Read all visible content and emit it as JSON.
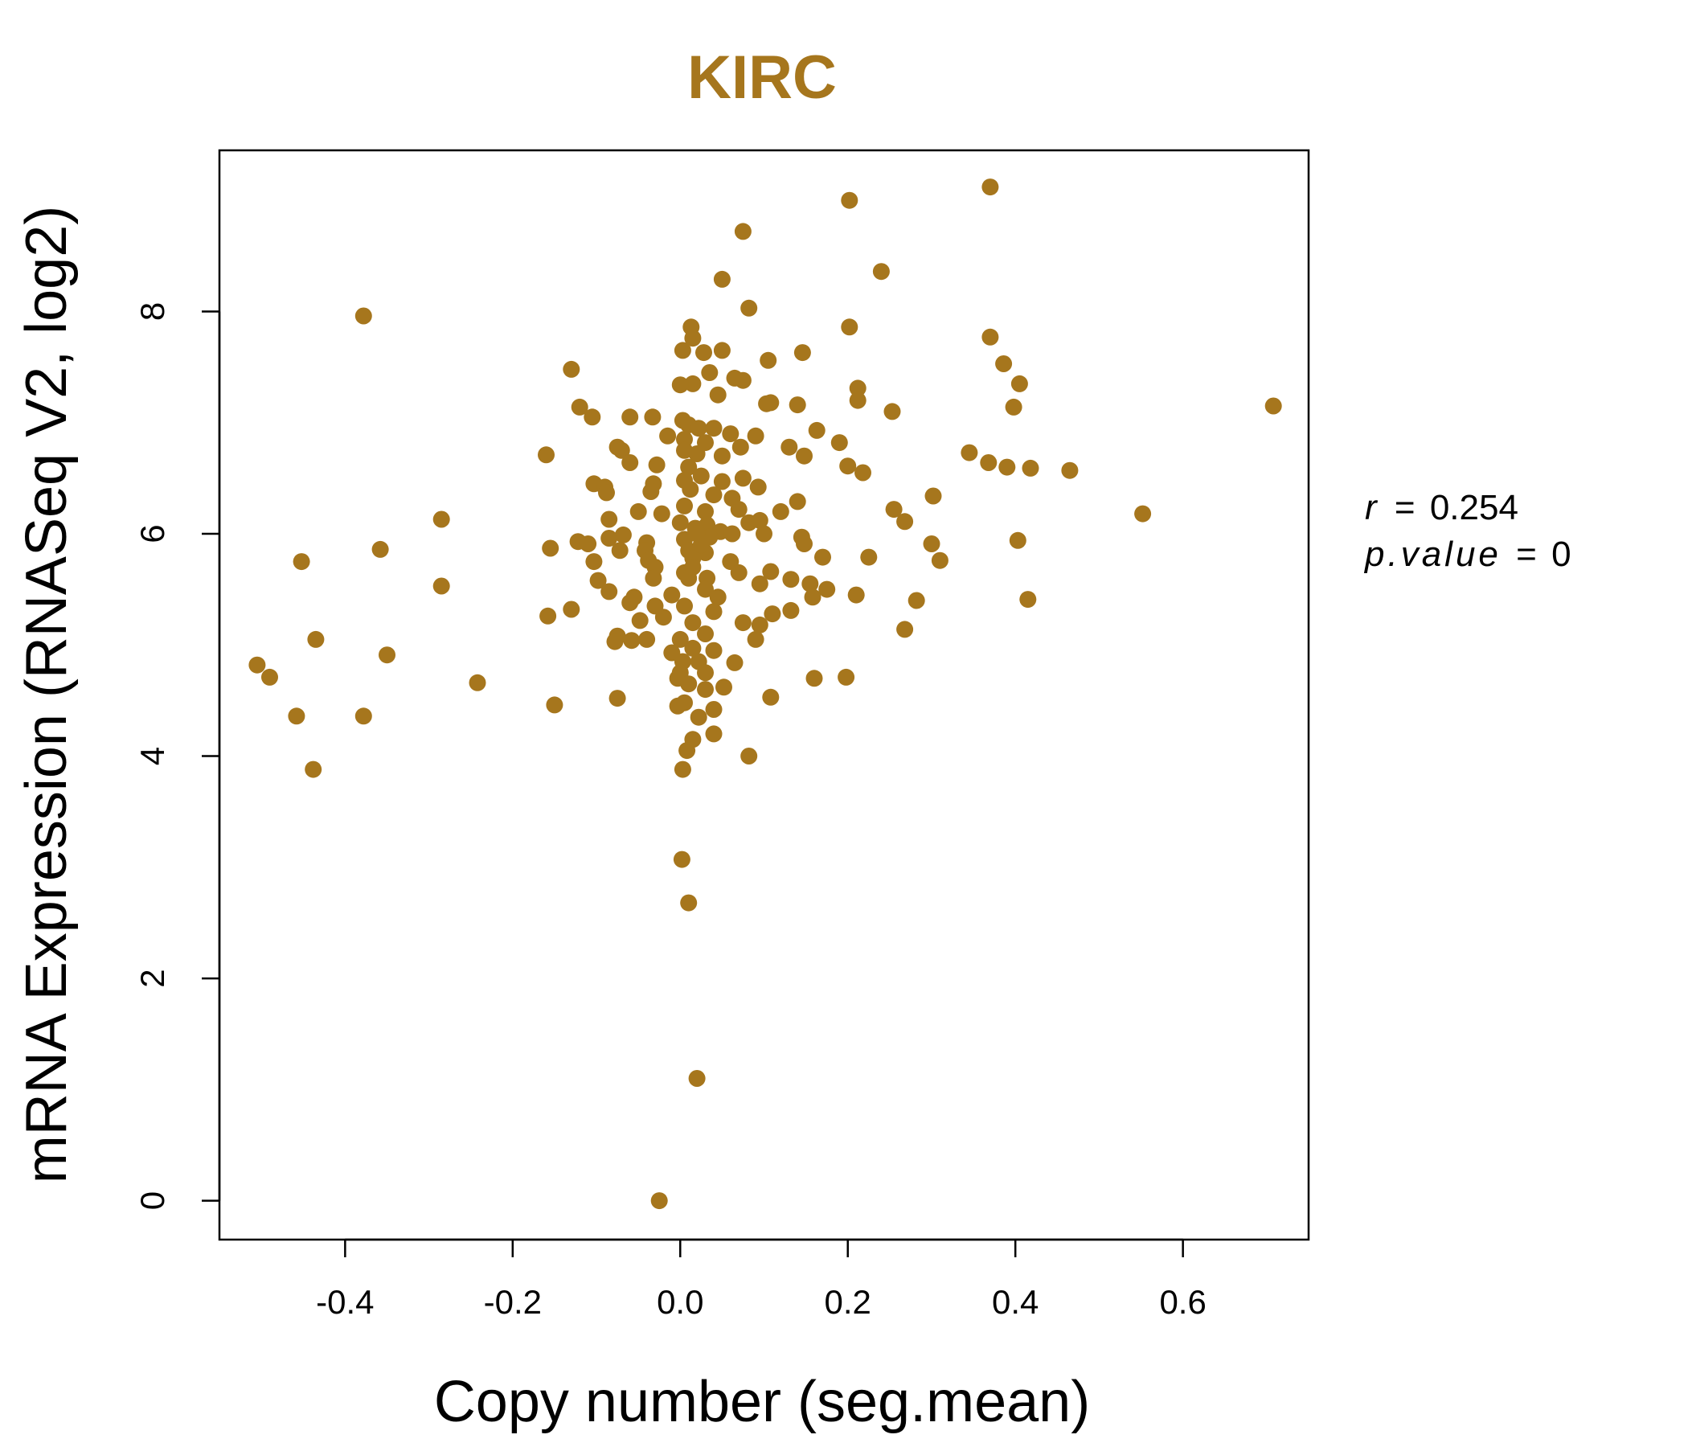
{
  "chart_data": {
    "type": "scatter",
    "title": "KIRC",
    "xlabel": "Copy number (seg.mean)",
    "ylabel": "mRNA Expression (RNASeq V2, log2)",
    "xlim": [
      -0.55,
      0.75
    ],
    "ylim": [
      -0.35,
      9.45
    ],
    "xticks": [
      -0.4,
      -0.2,
      0.0,
      0.2,
      0.4,
      0.6
    ],
    "xtick_labels": [
      "-0.4",
      "-0.2",
      "0.0",
      "0.2",
      "0.4",
      "0.6"
    ],
    "yticks": [
      0,
      2,
      4,
      6,
      8
    ],
    "ytick_labels": [
      "0",
      "2",
      "4",
      "6",
      "8"
    ],
    "grid": false,
    "point_color": "#a6761d",
    "stats": {
      "r_label": "r",
      "r_value": "0.254",
      "p_label": "p.value",
      "p_value": "0"
    },
    "series": [
      {
        "points": [
          [
            0.37,
            9.12
          ],
          [
            0.202,
            9.0
          ],
          [
            0.075,
            8.72
          ],
          [
            0.24,
            8.36
          ],
          [
            0.05,
            8.29
          ],
          [
            0.082,
            8.03
          ],
          [
            -0.378,
            7.96
          ],
          [
            0.013,
            7.86
          ],
          [
            0.202,
            7.86
          ],
          [
            0.37,
            7.77
          ],
          [
            0.015,
            7.76
          ],
          [
            0.003,
            7.65
          ],
          [
            0.028,
            7.63
          ],
          [
            0.05,
            7.65
          ],
          [
            0.146,
            7.63
          ],
          [
            0.105,
            7.56
          ],
          [
            0.386,
            7.53
          ],
          [
            -0.13,
            7.48
          ],
          [
            0.035,
            7.45
          ],
          [
            0.065,
            7.4
          ],
          [
            0.075,
            7.38
          ],
          [
            0.015,
            7.35
          ],
          [
            0.405,
            7.35
          ],
          [
            0.212,
            7.31
          ],
          [
            0.0,
            7.34
          ],
          [
            0.045,
            7.25
          ],
          [
            0.212,
            7.2
          ],
          [
            0.103,
            7.17
          ],
          [
            0.108,
            7.18
          ],
          [
            0.14,
            7.16
          ],
          [
            -0.12,
            7.14
          ],
          [
            0.398,
            7.14
          ],
          [
            0.708,
            7.15
          ],
          [
            0.253,
            7.1
          ],
          [
            -0.105,
            7.05
          ],
          [
            -0.06,
            7.05
          ],
          [
            -0.033,
            7.05
          ],
          [
            0.003,
            7.02
          ],
          [
            0.01,
            6.98
          ],
          [
            0.022,
            6.95
          ],
          [
            0.04,
            6.95
          ],
          [
            0.06,
            6.9
          ],
          [
            0.163,
            6.93
          ],
          [
            -0.015,
            6.88
          ],
          [
            0.005,
            6.85
          ],
          [
            0.03,
            6.82
          ],
          [
            0.09,
            6.88
          ],
          [
            0.19,
            6.82
          ],
          [
            -0.075,
            6.78
          ],
          [
            -0.07,
            6.75
          ],
          [
            0.005,
            6.75
          ],
          [
            0.02,
            6.72
          ],
          [
            0.05,
            6.7
          ],
          [
            0.072,
            6.78
          ],
          [
            0.13,
            6.78
          ],
          [
            0.148,
            6.7
          ],
          [
            0.345,
            6.73
          ],
          [
            -0.16,
            6.71
          ],
          [
            -0.06,
            6.64
          ],
          [
            -0.028,
            6.62
          ],
          [
            0.01,
            6.6
          ],
          [
            0.368,
            6.64
          ],
          [
            0.39,
            6.6
          ],
          [
            0.418,
            6.59
          ],
          [
            0.465,
            6.57
          ],
          [
            0.2,
            6.61
          ],
          [
            0.218,
            6.55
          ],
          [
            -0.103,
            6.45
          ],
          [
            -0.09,
            6.42
          ],
          [
            -0.032,
            6.45
          ],
          [
            0.005,
            6.48
          ],
          [
            0.025,
            6.52
          ],
          [
            0.05,
            6.47
          ],
          [
            0.075,
            6.5
          ],
          [
            0.093,
            6.42
          ],
          [
            -0.088,
            6.37
          ],
          [
            -0.035,
            6.38
          ],
          [
            0.012,
            6.4
          ],
          [
            0.04,
            6.35
          ],
          [
            0.062,
            6.32
          ],
          [
            0.14,
            6.29
          ],
          [
            0.302,
            6.34
          ],
          [
            -0.05,
            6.2
          ],
          [
            -0.022,
            6.18
          ],
          [
            0.005,
            6.25
          ],
          [
            0.03,
            6.2
          ],
          [
            0.07,
            6.22
          ],
          [
            0.12,
            6.2
          ],
          [
            0.255,
            6.22
          ],
          [
            0.552,
            6.18
          ],
          [
            -0.285,
            6.13
          ],
          [
            -0.085,
            6.13
          ],
          [
            0.0,
            6.1
          ],
          [
            0.032,
            6.08
          ],
          [
            0.082,
            6.1
          ],
          [
            0.095,
            6.12
          ],
          [
            0.268,
            6.11
          ],
          [
            0.018,
            6.05
          ],
          [
            0.048,
            6.02
          ],
          [
            0.062,
            6.0
          ],
          [
            0.1,
            6.0
          ],
          [
            -0.068,
            5.99
          ],
          [
            -0.122,
            5.93
          ],
          [
            -0.11,
            5.91
          ],
          [
            -0.085,
            5.96
          ],
          [
            -0.04,
            5.92
          ],
          [
            0.005,
            5.95
          ],
          [
            0.035,
            5.97
          ],
          [
            0.145,
            5.97
          ],
          [
            0.148,
            5.91
          ],
          [
            0.3,
            5.91
          ],
          [
            0.403,
            5.94
          ],
          [
            -0.155,
            5.87
          ],
          [
            -0.358,
            5.86
          ],
          [
            -0.072,
            5.85
          ],
          [
            -0.042,
            5.85
          ],
          [
            0.01,
            5.85
          ],
          [
            0.03,
            5.83
          ],
          [
            0.17,
            5.79
          ],
          [
            0.225,
            5.79
          ],
          [
            -0.452,
            5.75
          ],
          [
            -0.103,
            5.75
          ],
          [
            -0.038,
            5.76
          ],
          [
            0.015,
            5.78
          ],
          [
            0.06,
            5.75
          ],
          [
            0.31,
            5.76
          ],
          [
            -0.03,
            5.7
          ],
          [
            0.005,
            5.65
          ],
          [
            0.07,
            5.65
          ],
          [
            0.108,
            5.66
          ],
          [
            -0.098,
            5.58
          ],
          [
            -0.032,
            5.6
          ],
          [
            0.01,
            5.6
          ],
          [
            0.032,
            5.6
          ],
          [
            0.095,
            5.55
          ],
          [
            0.132,
            5.59
          ],
          [
            0.155,
            5.55
          ],
          [
            -0.285,
            5.53
          ],
          [
            -0.085,
            5.48
          ],
          [
            -0.055,
            5.43
          ],
          [
            -0.01,
            5.45
          ],
          [
            0.045,
            5.43
          ],
          [
            0.158,
            5.43
          ],
          [
            0.175,
            5.5
          ],
          [
            0.21,
            5.45
          ],
          [
            0.282,
            5.4
          ],
          [
            0.415,
            5.41
          ],
          [
            -0.06,
            5.38
          ],
          [
            -0.03,
            5.35
          ],
          [
            0.005,
            5.35
          ],
          [
            0.04,
            5.3
          ],
          [
            0.11,
            5.28
          ],
          [
            0.132,
            5.31
          ],
          [
            -0.13,
            5.32
          ],
          [
            -0.158,
            5.26
          ],
          [
            -0.048,
            5.22
          ],
          [
            -0.02,
            5.25
          ],
          [
            0.015,
            5.2
          ],
          [
            0.075,
            5.2
          ],
          [
            0.095,
            5.18
          ],
          [
            0.268,
            5.14
          ],
          [
            -0.075,
            5.08
          ],
          [
            -0.04,
            5.05
          ],
          [
            0.0,
            5.05
          ],
          [
            0.03,
            5.1
          ],
          [
            0.09,
            5.05
          ],
          [
            -0.435,
            5.05
          ],
          [
            -0.078,
            5.03
          ],
          [
            -0.058,
            5.04
          ],
          [
            -0.01,
            4.93
          ],
          [
            0.015,
            4.97
          ],
          [
            0.04,
            4.95
          ],
          [
            -0.35,
            4.91
          ],
          [
            0.003,
            4.85
          ],
          [
            0.022,
            4.85
          ],
          [
            0.065,
            4.84
          ],
          [
            -0.505,
            4.82
          ],
          [
            0.0,
            4.75
          ],
          [
            0.03,
            4.75
          ],
          [
            -0.49,
            4.71
          ],
          [
            -0.003,
            4.7
          ],
          [
            0.16,
            4.7
          ],
          [
            0.198,
            4.71
          ],
          [
            -0.242,
            4.66
          ],
          [
            0.01,
            4.65
          ],
          [
            0.052,
            4.62
          ],
          [
            0.03,
            4.6
          ],
          [
            0.108,
            4.53
          ],
          [
            -0.075,
            4.52
          ],
          [
            -0.15,
            4.46
          ],
          [
            -0.003,
            4.45
          ],
          [
            0.005,
            4.48
          ],
          [
            0.04,
            4.42
          ],
          [
            -0.458,
            4.36
          ],
          [
            -0.378,
            4.36
          ],
          [
            0.022,
            4.35
          ],
          [
            0.04,
            4.2
          ],
          [
            0.015,
            4.15
          ],
          [
            0.008,
            4.05
          ],
          [
            0.082,
            4.0
          ],
          [
            -0.438,
            3.88
          ],
          [
            0.003,
            3.88
          ],
          [
            0.002,
            3.07
          ],
          [
            0.01,
            2.68
          ],
          [
            0.02,
            1.1
          ],
          [
            -0.025,
            0.0
          ],
          [
            0.025,
            5.9
          ],
          [
            0.015,
            5.7
          ],
          [
            0.03,
            5.5
          ],
          [
            0.02,
            6.0
          ]
        ]
      }
    ]
  }
}
